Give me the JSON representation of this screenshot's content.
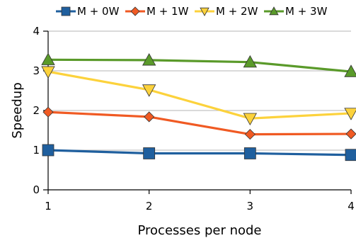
{
  "chart_data": {
    "type": "line",
    "title": "",
    "xlabel": "Processes per node",
    "ylabel": "Speedup",
    "x": [
      1,
      2,
      3,
      4
    ],
    "xlim": [
      1,
      4
    ],
    "ylim": [
      0,
      4
    ],
    "xticks": [
      "1",
      "2",
      "3",
      "4"
    ],
    "yticks": [
      "0",
      "1",
      "2",
      "3",
      "4"
    ],
    "grid": "horizontal",
    "legend_position": "top",
    "series": [
      {
        "name": "M + 0W",
        "values": [
          1.0,
          0.92,
          0.92,
          0.88
        ],
        "color": "#1f5f9e",
        "marker": "square"
      },
      {
        "name": "M + 1W",
        "values": [
          1.96,
          1.84,
          1.4,
          1.41
        ],
        "color": "#f05a23",
        "marker": "diamond"
      },
      {
        "name": "M + 2W",
        "values": [
          2.98,
          2.52,
          1.8,
          1.93
        ],
        "color": "#fcd23c",
        "marker": "triangle-down"
      },
      {
        "name": "M + 3W",
        "values": [
          3.28,
          3.27,
          3.22,
          2.98
        ],
        "color": "#5a9a2a",
        "marker": "triangle-up"
      }
    ]
  }
}
